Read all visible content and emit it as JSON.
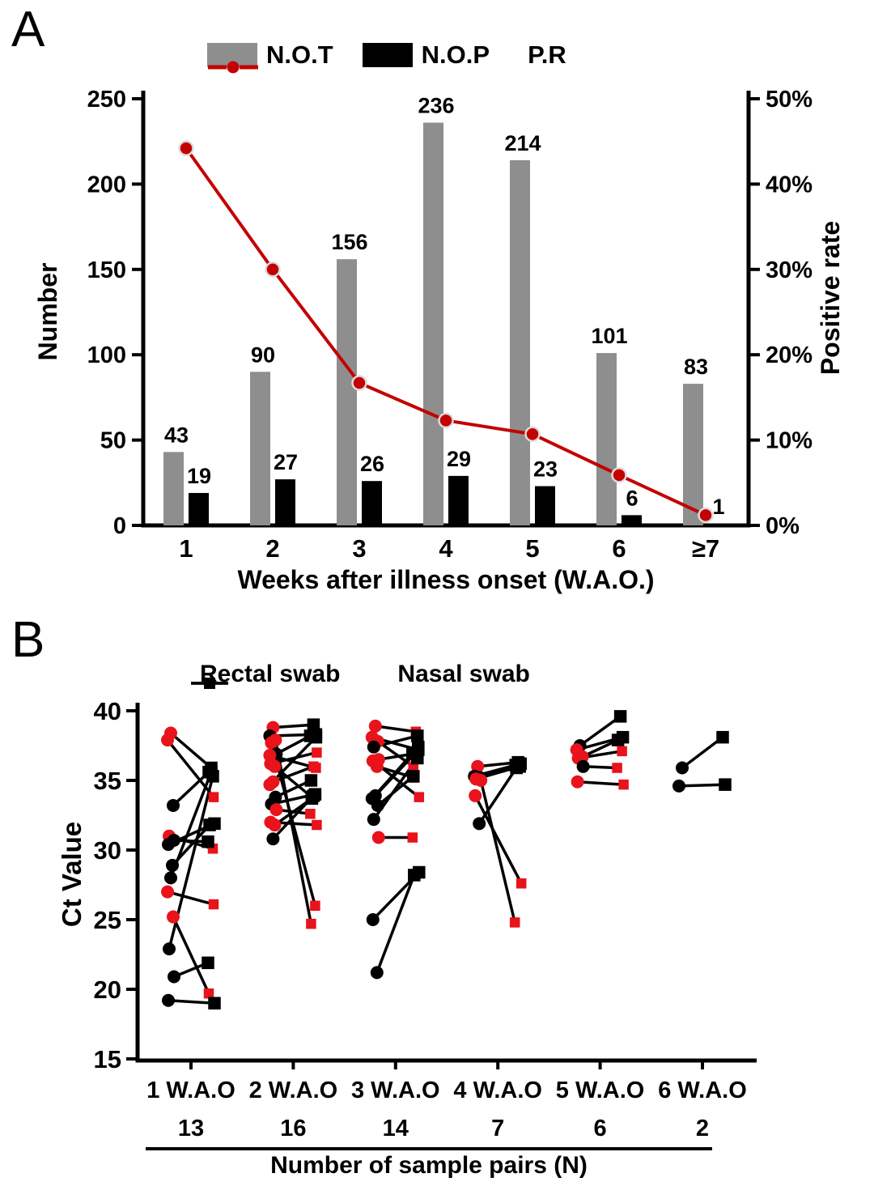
{
  "figure_labels": {
    "panel_a": "A",
    "panel_b": "B"
  },
  "chart_data": [
    {
      "panel": "A",
      "type": "bar+line",
      "categories": [
        "1",
        "2",
        "3",
        "4",
        "5",
        "6",
        "≥7"
      ],
      "series": [
        {
          "name": "N.O.T",
          "type": "bar",
          "color": "#8E8E8E",
          "values": [
            43,
            90,
            156,
            236,
            214,
            101,
            83
          ]
        },
        {
          "name": "N.O.P",
          "type": "bar",
          "color": "#000000",
          "values": [
            19,
            27,
            26,
            29,
            23,
            6,
            1
          ]
        },
        {
          "name": "P.R",
          "type": "line",
          "axis": "right",
          "color": "#C40000",
          "marker_stroke": "#DCDCDC",
          "values_percent": [
            44.2,
            30.0,
            16.7,
            12.3,
            10.7,
            5.9,
            1.2
          ]
        }
      ],
      "y_left": {
        "label": "Number",
        "ticks": [
          0,
          50,
          100,
          150,
          200,
          250
        ],
        "lim": [
          0,
          250
        ]
      },
      "y_right": {
        "label": "Positive rate",
        "ticks": [
          "0%",
          "10%",
          "20%",
          "30%",
          "40%",
          "50%"
        ],
        "lim_percent": [
          0,
          50
        ]
      },
      "x": {
        "label": "Weeks after illness onset (W.A.O.)"
      },
      "grid": false,
      "legend_position": "top"
    },
    {
      "panel": "B",
      "type": "paired-scatter",
      "y": {
        "label": "Ct Value",
        "ticks": [
          15,
          20,
          25,
          30,
          35,
          40
        ],
        "lim": [
          15,
          40
        ]
      },
      "series": [
        {
          "name": "Rectal swab",
          "marker": "circle"
        },
        {
          "name": "Nasal swab",
          "marker": "square"
        }
      ],
      "marker_colors": {
        "red": "#E8131B",
        "black": "#000000"
      },
      "x_caption": "Number of sample pairs (N)",
      "groups": [
        {
          "label": "1 W.A.O",
          "n": "13",
          "pairs": [
            [
              38.4,
              35.9,
              "red",
              "black"
            ],
            [
              37.9,
              33.8,
              "red",
              "red"
            ],
            [
              33.2,
              35.6,
              "black",
              "black"
            ],
            [
              31.0,
              30.1,
              "red",
              "red"
            ],
            [
              30.7,
              30.6,
              "black",
              "black"
            ],
            [
              30.4,
              31.9,
              "black",
              "black"
            ],
            [
              28.9,
              31.8,
              "black",
              "black"
            ],
            [
              28.0,
              35.6,
              "black",
              "black"
            ],
            [
              27.0,
              26.1,
              "red",
              "red"
            ],
            [
              25.2,
              19.7,
              "red",
              "red"
            ],
            [
              22.9,
              35.3,
              "black",
              "black"
            ],
            [
              20.9,
              21.9,
              "black",
              "black"
            ],
            [
              19.2,
              19.0,
              "black",
              "black"
            ]
          ]
        },
        {
          "label": "2 W.A.O",
          "n": "16",
          "pairs": [
            [
              38.8,
              39.0,
              "red",
              "black"
            ],
            [
              38.2,
              38.3,
              "black",
              "black"
            ],
            [
              37.9,
              24.7,
              "red",
              "red"
            ],
            [
              37.7,
              26.0,
              "red",
              "red"
            ],
            [
              36.9,
              38.2,
              "black",
              "black"
            ],
            [
              36.2,
              37.0,
              "red",
              "red"
            ],
            [
              36.0,
              33.8,
              "red",
              "black"
            ],
            [
              34.9,
              36.0,
              "red",
              "red"
            ],
            [
              34.7,
              38.1,
              "red",
              "black"
            ],
            [
              33.8,
              35.0,
              "black",
              "black"
            ],
            [
              33.3,
              34.0,
              "black",
              "black"
            ],
            [
              32.9,
              32.6,
              "red",
              "red"
            ],
            [
              32.0,
              31.8,
              "red",
              "red"
            ],
            [
              31.8,
              33.7,
              "red",
              "black"
            ],
            [
              30.8,
              33.9,
              "black",
              "black"
            ],
            [
              36.8,
              35.9,
              "red",
              "red"
            ]
          ]
        },
        {
          "label": "3 W.A.O",
          "n": "14",
          "pairs": [
            [
              38.9,
              38.5,
              "red",
              "red"
            ],
            [
              38.1,
              37.2,
              "red",
              "black"
            ],
            [
              37.8,
              36.0,
              "red",
              "red"
            ],
            [
              37.4,
              38.2,
              "black",
              "black"
            ],
            [
              36.5,
              36.9,
              "red",
              "black"
            ],
            [
              36.4,
              33.8,
              "red",
              "red"
            ],
            [
              36.0,
              35.2,
              "red",
              "red"
            ],
            [
              33.9,
              37.0,
              "black",
              "black"
            ],
            [
              33.7,
              37.4,
              "black",
              "black"
            ],
            [
              33.2,
              35.3,
              "black",
              "black"
            ],
            [
              32.2,
              36.6,
              "black",
              "black"
            ],
            [
              30.9,
              30.9,
              "red",
              "red"
            ],
            [
              25.0,
              28.4,
              "black",
              "black"
            ],
            [
              21.2,
              28.2,
              "black",
              "black"
            ]
          ]
        },
        {
          "label": "4 W.A.O",
          "n": "7",
          "pairs": [
            [
              36.0,
              36.3,
              "red",
              "black"
            ],
            [
              35.3,
              36.2,
              "black",
              "black"
            ],
            [
              35.2,
              36.1,
              "black",
              "black"
            ],
            [
              35.1,
              36.0,
              "red",
              "black"
            ],
            [
              35.0,
              24.8,
              "red",
              "red"
            ],
            [
              33.9,
              27.6,
              "red",
              "red"
            ],
            [
              31.9,
              35.9,
              "black",
              "black"
            ]
          ]
        },
        {
          "label": "5 W.A.O",
          "n": "6",
          "pairs": [
            [
              37.5,
              39.6,
              "black",
              "black"
            ],
            [
              37.2,
              38.1,
              "red",
              "black"
            ],
            [
              36.7,
              37.9,
              "red",
              "black"
            ],
            [
              36.6,
              37.1,
              "red",
              "red"
            ],
            [
              36.0,
              35.9,
              "black",
              "red"
            ],
            [
              34.9,
              34.7,
              "red",
              "red"
            ]
          ]
        },
        {
          "label": "6 W.A.O",
          "n": "2",
          "pairs": [
            [
              35.9,
              38.1,
              "black",
              "black"
            ],
            [
              34.6,
              34.7,
              "black",
              "black"
            ]
          ]
        }
      ]
    }
  ]
}
